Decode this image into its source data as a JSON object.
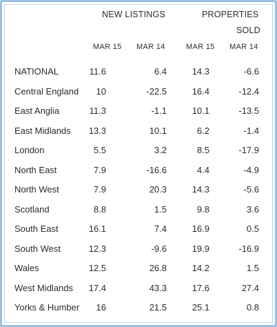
{
  "headers": {
    "new_listings": "NEW LISTINGS",
    "properties_sold_line1": "PROPERTIES",
    "properties_sold_line2": "SOLD"
  },
  "subheaders": [
    "MAR 15",
    "MAR 14",
    "MAR 15",
    "MAR 14"
  ],
  "rows": [
    {
      "region": "NATIONAL",
      "values": [
        "11.6",
        "6.4",
        "14.3",
        "-6.6"
      ]
    },
    {
      "region": "Central England",
      "values": [
        "10",
        "-22.5",
        "16.4",
        "-12.4"
      ]
    },
    {
      "region": "East Anglia",
      "values": [
        "11.3",
        "-1.1",
        "10.1",
        "-13.5"
      ]
    },
    {
      "region": "East Midlands",
      "values": [
        "13.3",
        "10.1",
        "6.2",
        "-1.4"
      ]
    },
    {
      "region": "London",
      "values": [
        "5.5",
        "3.2",
        "8.5",
        "-17.9"
      ]
    },
    {
      "region": "North East",
      "values": [
        "7.9",
        "-16.6",
        "4.4",
        "-4.9"
      ]
    },
    {
      "region": "North West",
      "values": [
        "7.9",
        "20.3",
        "14.3",
        "-5.6"
      ]
    },
    {
      "region": "Scotland",
      "values": [
        "8.8",
        "1.5",
        "9.8",
        "3.6"
      ]
    },
    {
      "region": "South East",
      "values": [
        "16.1",
        "7.4",
        "16.9",
        "0.5"
      ]
    },
    {
      "region": "South West",
      "values": [
        "12.3",
        "-9.6",
        "19.9",
        "-16.9"
      ]
    },
    {
      "region": "Wales",
      "values": [
        "12.5",
        "26.8",
        "14.2",
        "1.5"
      ]
    },
    {
      "region": "West Midlands",
      "values": [
        "17.4",
        "43.3",
        "17.6",
        "27.4"
      ]
    },
    {
      "region": "Yorks & Humber",
      "values": [
        "16",
        "21.5",
        "25.1",
        "0.8"
      ]
    }
  ]
}
